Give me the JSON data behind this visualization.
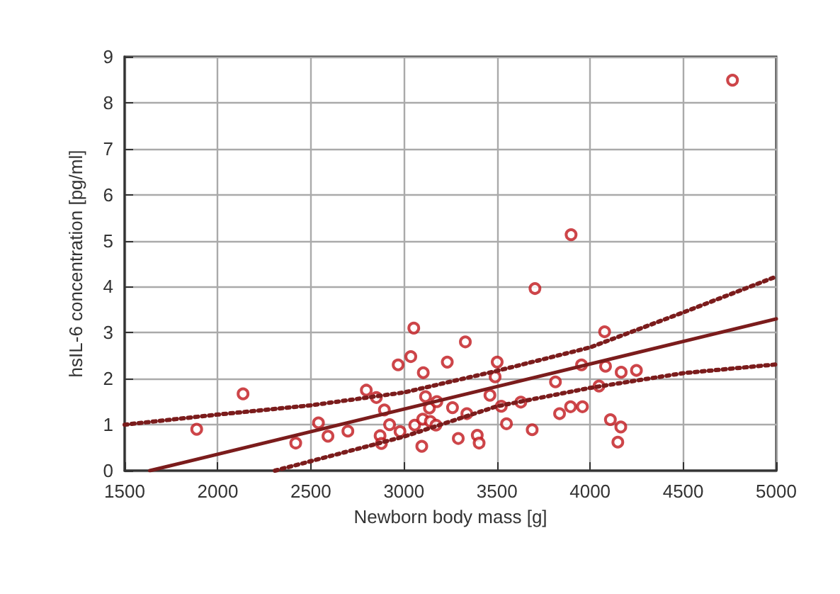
{
  "chart_data": {
    "type": "scatter",
    "xlabel": "Newborn body mass [g]",
    "ylabel": "hsIL-6 concentration [pg/ml]",
    "xlim": [
      1500,
      5000
    ],
    "xticks": [
      1500,
      2000,
      2500,
      3000,
      3500,
      4000,
      4500,
      5000
    ],
    "ylim": [
      0,
      9
    ],
    "yticks": [
      0,
      1,
      2,
      3,
      4,
      5,
      6,
      7,
      8,
      9
    ],
    "grid": true,
    "series": [
      {
        "color": "#c0161c",
        "marker": "circle",
        "x": [
          1887,
          2136,
          2419,
          2541,
          2592,
          2699,
          2798,
          2852,
          2895,
          2872,
          2879,
          2923,
          2979,
          2969,
          3037,
          3053,
          3058,
          3104,
          3116,
          3096,
          3101,
          3137,
          3142,
          3177,
          3172,
          3233,
          3261,
          3292,
          3330,
          3338,
          3394,
          3404,
          3462,
          3490,
          3501,
          3523,
          3551,
          3628,
          3689,
          3704,
          3814,
          3836,
          3898,
          3895,
          3959,
          3954,
          4048,
          4078,
          4083,
          4109,
          4165,
          4149,
          4167,
          4249,
          4765
        ],
        "values": [
          0.9,
          1.67,
          0.6,
          1.04,
          0.75,
          0.86,
          1.75,
          1.59,
          1.32,
          0.76,
          0.59,
          1.0,
          0.85,
          2.3,
          2.48,
          3.1,
          0.99,
          2.13,
          1.61,
          0.53,
          1.12,
          1.36,
          1.07,
          1.5,
          0.99,
          2.36,
          1.37,
          0.7,
          2.8,
          1.24,
          0.77,
          0.6,
          1.64,
          2.04,
          2.36,
          1.4,
          1.02,
          1.49,
          0.89,
          3.96,
          1.93,
          1.24,
          5.13,
          1.39,
          1.39,
          2.3,
          1.84,
          3.02,
          2.27,
          1.11,
          0.95,
          0.62,
          2.14,
          2.18,
          8.49
        ]
      },
      {
        "type": "line",
        "color": "#7b1c1c",
        "marker": "none",
        "line_style": "solid",
        "x": [
          1635,
          5000
        ],
        "values": [
          0,
          3.3
        ]
      },
      {
        "type": "line",
        "color": "#7b1c1c",
        "marker": "none",
        "line_style": "dotted",
        "x": [
          1500,
          2000,
          2500,
          3000,
          3500,
          4000,
          4500,
          5000
        ],
        "values": [
          1.0,
          1.22,
          1.42,
          1.7,
          2.17,
          2.68,
          3.44,
          4.22
        ]
      },
      {
        "type": "line",
        "color": "#7b1c1c",
        "marker": "none",
        "line_style": "dotted",
        "x": [
          2307,
          3000,
          3500,
          4000,
          4500,
          5000
        ],
        "values": [
          0,
          0.74,
          1.4,
          1.8,
          2.12,
          2.31
        ]
      }
    ]
  }
}
